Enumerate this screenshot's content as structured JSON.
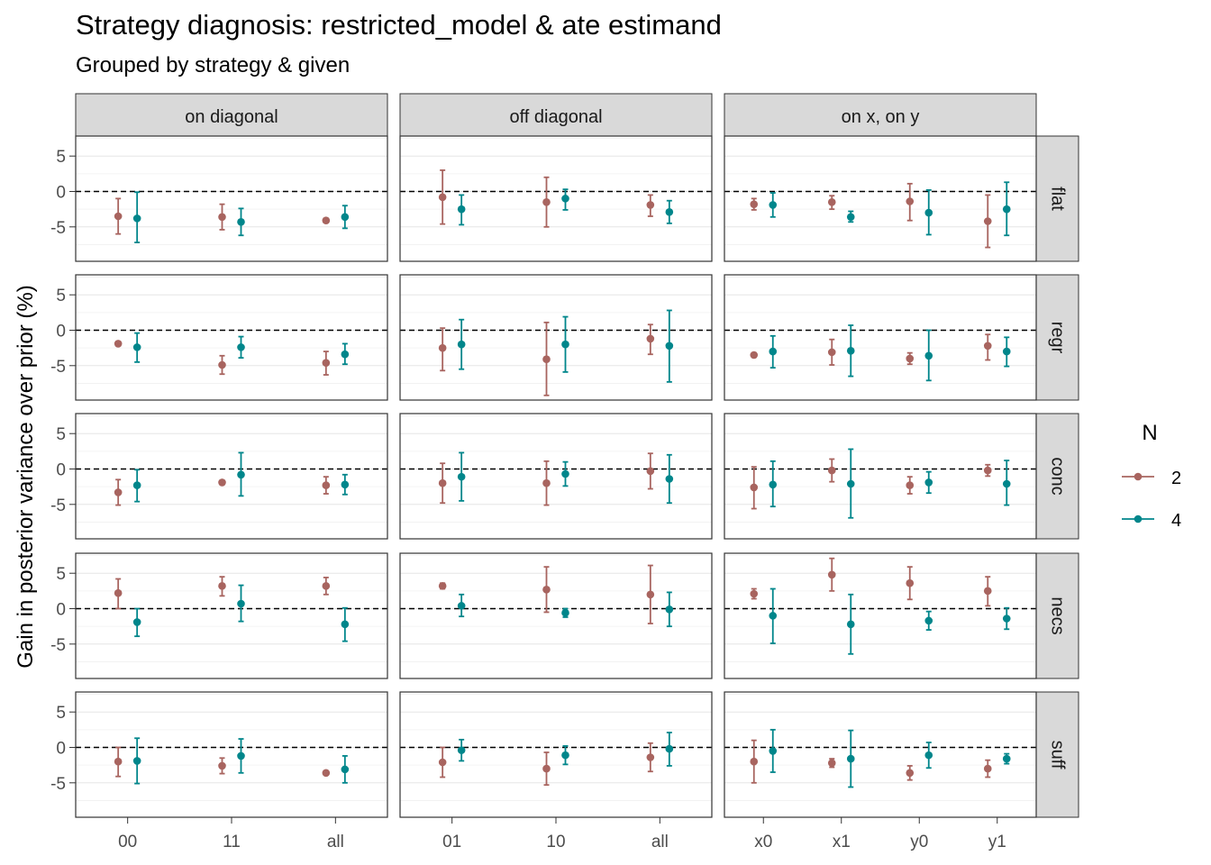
{
  "title": "Strategy diagnosis: restricted_model & ate estimand",
  "subtitle": "Grouped by strategy & given",
  "chart_data": {
    "type": "scatter",
    "style": "point-range facet grid",
    "title": "Strategy diagnosis: restricted_model & ate estimand",
    "subtitle": "Grouped by strategy & given",
    "ylabel": "Gain in posterior variance over prior (%)",
    "xlabel": "",
    "ylim": [
      -9.5,
      8
    ],
    "y_ticks": [
      -5,
      0,
      5
    ],
    "reference_line": 0,
    "grid": true,
    "legend": {
      "title": "N",
      "position": "right",
      "entries": [
        {
          "label": "2",
          "color": "#A8645F"
        },
        {
          "label": "4",
          "color": "#00868B"
        }
      ]
    },
    "column_facets": [
      {
        "label": "on diagonal",
        "categories": [
          "00",
          "11",
          "all"
        ]
      },
      {
        "label": "off diagonal",
        "categories": [
          "01",
          "10",
          "all"
        ]
      },
      {
        "label": "on x, on y",
        "categories": [
          "x0",
          "x1",
          "y0",
          "y1"
        ]
      }
    ],
    "row_facets": [
      "flat",
      "regr",
      "conc",
      "necs",
      "suff"
    ],
    "panels": {
      "flat": [
        {
          "n2": [
            [
              -3.5,
              -6,
              -1
            ],
            [
              -3.6,
              -5.4,
              -1.8
            ],
            [
              -4.1,
              -4.4,
              -3.8
            ]
          ],
          "n4": [
            [
              -3.8,
              -7.2,
              -0.1
            ],
            [
              -4.3,
              -6.2,
              -2.4
            ],
            [
              -3.6,
              -5.2,
              -2
            ]
          ]
        },
        {
          "n2": [
            [
              -0.8,
              -4.6,
              3
            ],
            [
              -1.5,
              -5,
              2
            ],
            [
              -1.9,
              -3.5,
              -0.5
            ]
          ],
          "n4": [
            [
              -2.5,
              -4.7,
              -0.5
            ],
            [
              -1,
              -2.6,
              0.3
            ],
            [
              -2.9,
              -4.5,
              -1.3
            ]
          ]
        },
        {
          "n2": [
            [
              -1.8,
              -2.6,
              -1
            ],
            [
              -1.5,
              -2.5,
              -0.6
            ],
            [
              -1.4,
              -4.1,
              1.1
            ],
            [
              -4.2,
              -7.9,
              -0.5
            ]
          ],
          "n4": [
            [
              -1.9,
              -3.6,
              -0.2
            ],
            [
              -3.6,
              -4.3,
              -2.8
            ],
            [
              -3,
              -6.1,
              0.2
            ],
            [
              -2.5,
              -6.2,
              1.3
            ]
          ]
        }
      ],
      "regr": [
        {
          "n2": [
            [
              -1.9,
              -2.2,
              -1.6
            ],
            [
              -4.9,
              -6.2,
              -3.6
            ],
            [
              -4.6,
              -6.3,
              -3
            ]
          ],
          "n4": [
            [
              -2.4,
              -4.5,
              -0.4
            ],
            [
              -2.4,
              -3.9,
              -0.9
            ],
            [
              -3.4,
              -4.8,
              -1.9
            ]
          ]
        },
        {
          "n2": [
            [
              -2.5,
              -5.7,
              0.3
            ],
            [
              -4.1,
              -9.2,
              1.1
            ],
            [
              -1.2,
              -3.4,
              0.8
            ]
          ],
          "n4": [
            [
              -2,
              -5.5,
              1.5
            ],
            [
              -2,
              -5.9,
              1.9
            ],
            [
              -2.2,
              -7.3,
              2.8
            ]
          ]
        },
        {
          "n2": [
            [
              -3.5,
              -3.8,
              -3.2
            ],
            [
              -3.1,
              -4.9,
              -1.3
            ],
            [
              -4,
              -4.8,
              -3.2
            ],
            [
              -2.2,
              -4.2,
              -0.6
            ]
          ],
          "n4": [
            [
              -3,
              -5.3,
              -0.8
            ],
            [
              -2.9,
              -6.5,
              0.7
            ],
            [
              -3.6,
              -7.1,
              0
            ],
            [
              -3,
              -5.1,
              -1
            ]
          ]
        }
      ],
      "conc": [
        {
          "n2": [
            [
              -3.3,
              -5.1,
              -1.5
            ],
            [
              -1.9,
              -2.2,
              -1.6
            ],
            [
              -2.3,
              -3.5,
              -1.1
            ]
          ],
          "n4": [
            [
              -2.3,
              -4.6,
              -0.1
            ],
            [
              -0.8,
              -3.8,
              2.3
            ],
            [
              -2.2,
              -3.6,
              -0.8
            ]
          ]
        },
        {
          "n2": [
            [
              -2,
              -4.8,
              0.8
            ],
            [
              -2,
              -5.1,
              1.1
            ],
            [
              -0.3,
              -2.8,
              2.2
            ]
          ],
          "n4": [
            [
              -1.1,
              -4.5,
              2.3
            ],
            [
              -0.7,
              -2.4,
              1
            ]
          ],
          "n4_all": [
            [
              -1.4,
              -4.8,
              2
            ]
          ]
        },
        {
          "n2": [
            [
              -2.6,
              -5.6,
              0.3
            ],
            [
              -0.2,
              -1.8,
              1.4
            ],
            [
              -2.3,
              -3.5,
              -1.1
            ],
            [
              -0.2,
              -1,
              0.6
            ]
          ],
          "n4": [
            [
              -2.2,
              -5.3,
              1.1
            ],
            [
              -2.1,
              -6.9,
              2.8
            ],
            [
              -1.9,
              -3.4,
              -0.4
            ],
            [
              -2.1,
              -5.1,
              1.2
            ]
          ]
        }
      ],
      "necs": [
        {
          "n2": [
            [
              2.2,
              0,
              4.2
            ],
            [
              3.2,
              1.8,
              4.5
            ],
            [
              3.2,
              2,
              4.4
            ]
          ],
          "n4": [
            [
              -1.9,
              -3.9,
              0
            ],
            [
              0.7,
              -1.8,
              3.3
            ],
            [
              -2.2,
              -4.6,
              0.1
            ]
          ]
        },
        {
          "n2": [
            [
              3.2,
              2.8,
              3.6
            ],
            [
              2.7,
              -0.5,
              5.9
            ],
            [
              2,
              -2.1,
              6.1
            ]
          ],
          "n4": [
            [
              0.4,
              -1.1,
              2
            ],
            [
              -0.6,
              -1.2,
              0
            ],
            [
              -0.1,
              -2.5,
              2.3
            ]
          ]
        },
        {
          "n2": [
            [
              2.1,
              1.4,
              2.8
            ],
            [
              4.8,
              2.5,
              7.1
            ],
            [
              3.6,
              1.3,
              5.9
            ],
            [
              2.5,
              0.4,
              4.5
            ]
          ],
          "n4": [
            [
              -1,
              -4.9,
              2.8
            ],
            [
              -2.2,
              -6.4,
              2
            ],
            [
              -1.7,
              -3,
              -0.4
            ],
            [
              -1.4,
              -2.9,
              0.1
            ]
          ]
        }
      ],
      "suff": [
        {
          "n2": [
            [
              -2,
              -4.1,
              0
            ],
            [
              -2.6,
              -3.7,
              -1.5
            ],
            [
              -3.6,
              -3.8,
              -3.4
            ]
          ],
          "n4": [
            [
              -1.9,
              -5.1,
              1.3
            ],
            [
              -1.2,
              -3.6,
              1.2
            ],
            [
              -3.1,
              -5,
              -1.2
            ]
          ]
        },
        {
          "n2": [
            [
              -2.1,
              -4.2,
              0
            ],
            [
              -3,
              -5.3,
              -0.7
            ],
            [
              -1.4,
              -3.4,
              0.6
            ]
          ],
          "n4": [
            [
              -0.4,
              -1.9,
              1.1
            ],
            [
              -1.1,
              -2.4,
              0.2
            ],
            [
              -0.2,
              -2.6,
              2.1
            ]
          ]
        },
        {
          "n2": [
            [
              -2,
              -5,
              1
            ],
            [
              -2.2,
              -2.8,
              -1.6
            ],
            [
              -3.6,
              -4.6,
              -2.6
            ],
            [
              -3,
              -4.2,
              -1.8
            ]
          ],
          "n4": [
            [
              -0.5,
              -3.5,
              2.5
            ],
            [
              -1.6,
              -5.6,
              2.4
            ],
            [
              -1.1,
              -2.9,
              0.7
            ],
            [
              -1.6,
              -2.3,
              -0.9
            ]
          ]
        }
      ]
    }
  }
}
